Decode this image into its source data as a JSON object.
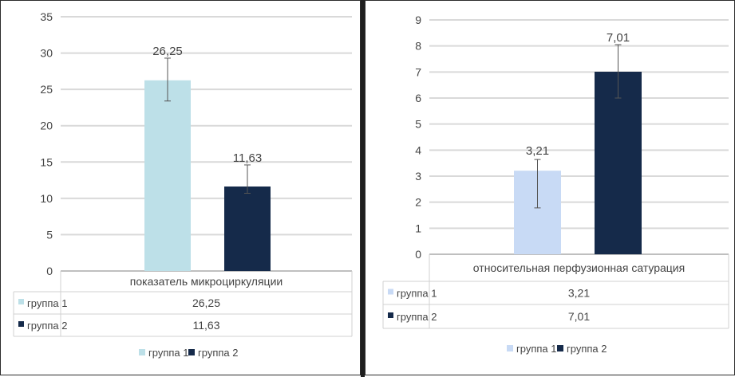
{
  "chart_data": [
    {
      "type": "bar",
      "categories": [
        "показатель микроциркуляции"
      ],
      "series": [
        {
          "name": "группа 1",
          "values": [
            26.25
          ],
          "error_low": [
            23.4
          ],
          "error_high": [
            29.3
          ],
          "color": "#bde0e8"
        },
        {
          "name": "группа 2",
          "values": [
            11.63
          ],
          "error_low": [
            10.7
          ],
          "error_high": [
            14.6
          ],
          "color": "#152a4a"
        }
      ],
      "data_labels": [
        "26,25",
        "11,63"
      ],
      "table_values": [
        "26,25",
        "11,63"
      ],
      "ylim": [
        0,
        35
      ],
      "yticks": [
        0,
        5,
        10,
        15,
        20,
        25,
        30,
        35
      ],
      "grid": true,
      "legend_position": "bottom",
      "data_table": true
    },
    {
      "type": "bar",
      "categories": [
        "относительная перфузионная сатурация"
      ],
      "series": [
        {
          "name": "группа 1",
          "values": [
            3.21
          ],
          "error_low": [
            1.78
          ],
          "error_high": [
            3.64
          ],
          "color": "#c8daf5"
        },
        {
          "name": "группа 2",
          "values": [
            7.01
          ],
          "error_low": [
            6.0
          ],
          "error_high": [
            8.05
          ],
          "color": "#152a4a"
        }
      ],
      "data_labels": [
        "3,21",
        "7,01"
      ],
      "table_values": [
        "3,21",
        "7,01"
      ],
      "ylim": [
        0,
        9
      ],
      "yticks": [
        0,
        1,
        2,
        3,
        4,
        5,
        6,
        7,
        8,
        9
      ],
      "grid": true,
      "legend_position": "bottom",
      "data_table": true
    }
  ]
}
